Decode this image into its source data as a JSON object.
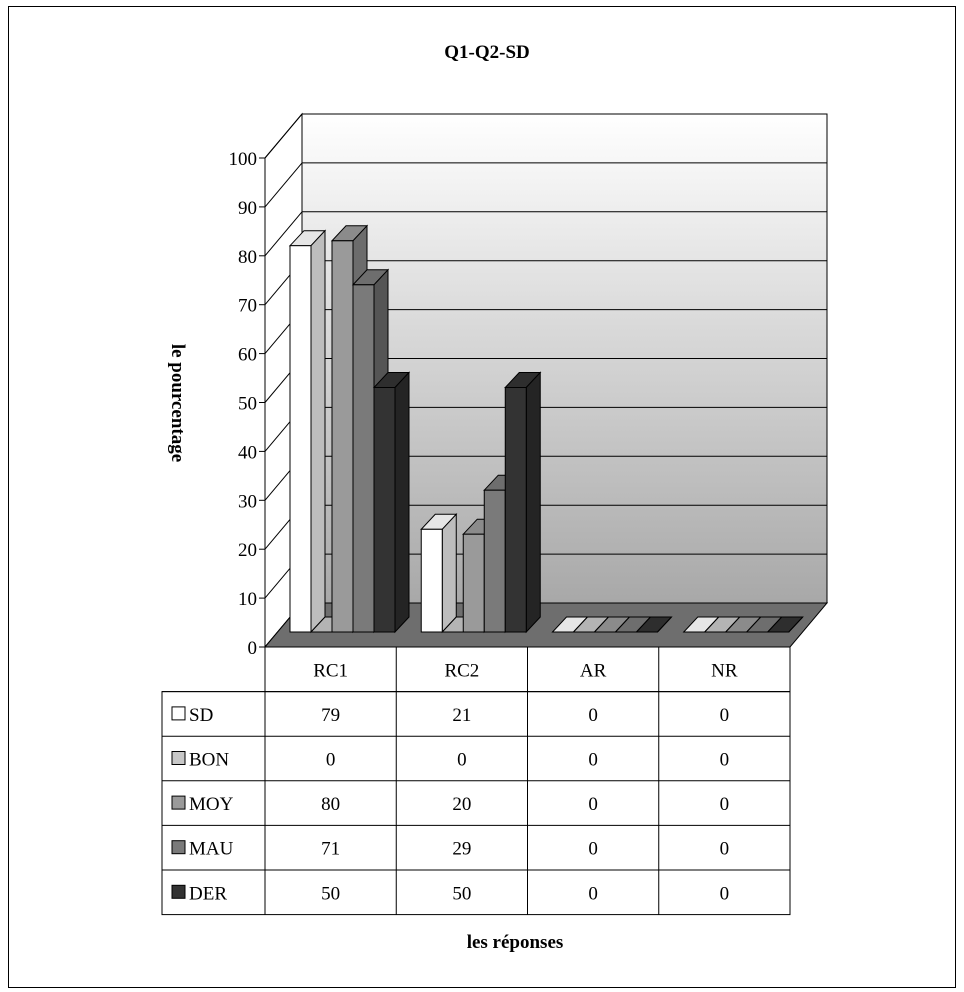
{
  "chart_data": {
    "type": "bar",
    "title": "Q1-Q2-SD",
    "ylabel": "le pourcentage",
    "xlabel": "les réponses",
    "categories": [
      "RC1",
      "RC2",
      "AR",
      "NR"
    ],
    "ylim": [
      0,
      100
    ],
    "yticks": [
      0,
      10,
      20,
      30,
      40,
      50,
      60,
      70,
      80,
      90,
      100
    ],
    "grid": true,
    "legend": "data-table",
    "series": [
      {
        "name": "SD",
        "values": [
          79,
          21,
          0,
          0
        ],
        "color": "#ffffff"
      },
      {
        "name": "BON",
        "values": [
          0,
          0,
          0,
          0
        ],
        "color": "#c8c8c8"
      },
      {
        "name": "MOY",
        "values": [
          80,
          20,
          0,
          0
        ],
        "color": "#9a9a9a"
      },
      {
        "name": "MAU",
        "values": [
          71,
          29,
          0,
          0
        ],
        "color": "#7a7a7a"
      },
      {
        "name": "DER",
        "values": [
          50,
          50,
          0,
          0
        ],
        "color": "#333333"
      }
    ]
  }
}
